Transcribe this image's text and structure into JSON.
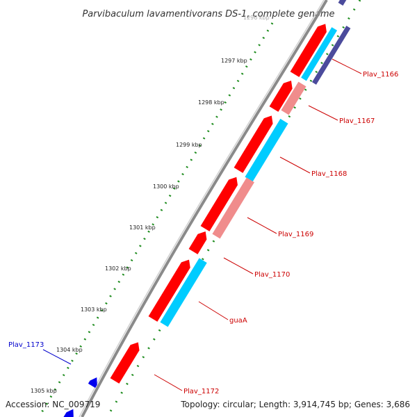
{
  "title": "Parvibaculum lavamentivorans DS-1, complete genome",
  "footer": {
    "accession": "Accession: NC_009719",
    "summary": "Topology: circular; Length: 3,914,745 bp; Genes: 3,686"
  },
  "colors": {
    "backbone": "#8a8a8a",
    "gene_forward": "#ff0000",
    "gene_cds_forward": "#00ccff",
    "gene_cds_pale": "#f08c8c",
    "gene_reverse": "#0000ee",
    "gene_dark": "#4b4b9c",
    "tick_dots": "#1e8c1e",
    "label_red": "#cc0000",
    "label_blue": "#0000cc"
  },
  "tick_labels": [
    "1296 kbp",
    "1297 kbp",
    "1298 kbp",
    "1299 kbp",
    "1300 kbp",
    "1301 kbp",
    "1302 kbp",
    "1303 kbp",
    "1304 kbp",
    "1305 kbp"
  ],
  "gene_labels": [
    {
      "name": "Plav_1166",
      "color": "#cc0000"
    },
    {
      "name": "Plav_1167",
      "color": "#cc0000"
    },
    {
      "name": "Plav_1168",
      "color": "#cc0000"
    },
    {
      "name": "Plav_1169",
      "color": "#cc0000"
    },
    {
      "name": "Plav_1170",
      "color": "#cc0000"
    },
    {
      "name": "guaA",
      "color": "#cc0000"
    },
    {
      "name": "Plav_1172",
      "color": "#cc0000"
    },
    {
      "name": "Plav_1173",
      "color": "#0000cc"
    }
  ]
}
